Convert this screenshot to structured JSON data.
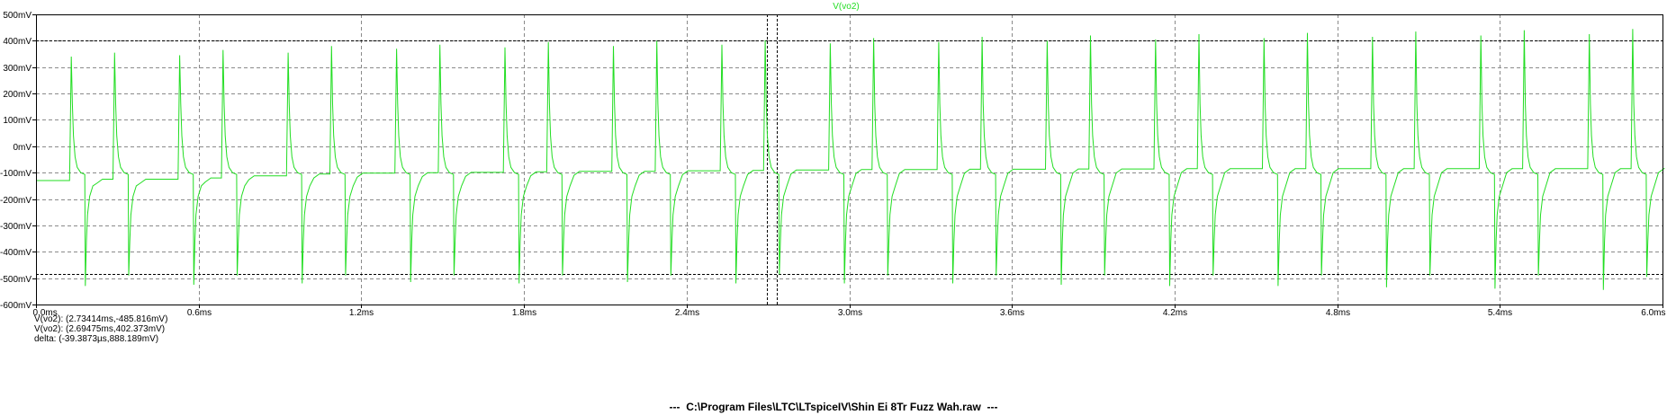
{
  "chart_data": {
    "type": "line",
    "title": "V(vo2)",
    "xlabel": "",
    "ylabel": "",
    "x_unit": "ms",
    "y_unit": "mV",
    "xlim": [
      0.0,
      6.0
    ],
    "ylim": [
      -600,
      500
    ],
    "x_ticks": [
      0.0,
      0.6,
      1.2,
      1.8,
      2.4,
      3.0,
      3.6,
      4.2,
      4.8,
      5.4,
      6.0
    ],
    "x_tick_labels": [
      "0.0ms",
      "0.6ms",
      "1.2ms",
      "1.8ms",
      "2.4ms",
      "3.0ms",
      "3.6ms",
      "4.2ms",
      "4.8ms",
      "5.4ms",
      "6.0ms"
    ],
    "y_ticks": [
      500,
      400,
      300,
      200,
      100,
      0,
      -100,
      -200,
      -300,
      -400,
      -500,
      -600
    ],
    "y_tick_labels": [
      "500mV",
      "400mV",
      "300mV",
      "200mV",
      "100mV",
      "0mV",
      "-100mV",
      "-200mV",
      "-300mV",
      "-400mV",
      "-500mV",
      "-600mV"
    ],
    "grid": true,
    "series": [
      {
        "name": "V(vo2)",
        "color": "#22dd22",
        "start_level": -130,
        "pulses": [
          {
            "t": 0.13,
            "pos": 340,
            "neg": -530,
            "base": -125
          },
          {
            "t": 0.29,
            "pos": 355,
            "neg": -490,
            "base": -125
          },
          {
            "t": 0.53,
            "pos": 345,
            "neg": -525,
            "base": -120
          },
          {
            "t": 0.69,
            "pos": 365,
            "neg": -490,
            "base": -112
          },
          {
            "t": 0.93,
            "pos": 355,
            "neg": -520,
            "base": -105
          },
          {
            "t": 1.09,
            "pos": 380,
            "neg": -490,
            "base": -102
          },
          {
            "t": 1.33,
            "pos": 370,
            "neg": -515,
            "base": -100
          },
          {
            "t": 1.49,
            "pos": 385,
            "neg": -490,
            "base": -99
          },
          {
            "t": 1.73,
            "pos": 375,
            "neg": -520,
            "base": -97
          },
          {
            "t": 1.89,
            "pos": 395,
            "neg": -490,
            "base": -95
          },
          {
            "t": 2.13,
            "pos": 380,
            "neg": -515,
            "base": -95
          },
          {
            "t": 2.29,
            "pos": 400,
            "neg": -490,
            "base": -93
          },
          {
            "t": 2.53,
            "pos": 385,
            "neg": -520,
            "base": -92
          },
          {
            "t": 2.69,
            "pos": 402,
            "neg": -486,
            "base": -90
          },
          {
            "t": 2.93,
            "pos": 390,
            "neg": -520,
            "base": -88
          },
          {
            "t": 3.09,
            "pos": 410,
            "neg": -490,
            "base": -88
          },
          {
            "t": 3.33,
            "pos": 395,
            "neg": -520,
            "base": -87
          },
          {
            "t": 3.49,
            "pos": 415,
            "neg": -490,
            "base": -87
          },
          {
            "t": 3.73,
            "pos": 400,
            "neg": -525,
            "base": -86
          },
          {
            "t": 3.89,
            "pos": 420,
            "neg": -490,
            "base": -86
          },
          {
            "t": 4.13,
            "pos": 405,
            "neg": -530,
            "base": -85
          },
          {
            "t": 4.29,
            "pos": 425,
            "neg": -490,
            "base": -85
          },
          {
            "t": 4.53,
            "pos": 410,
            "neg": -530,
            "base": -85
          },
          {
            "t": 4.69,
            "pos": 430,
            "neg": -490,
            "base": -85
          },
          {
            "t": 4.93,
            "pos": 415,
            "neg": -535,
            "base": -85
          },
          {
            "t": 5.09,
            "pos": 435,
            "neg": -490,
            "base": -85
          },
          {
            "t": 5.33,
            "pos": 420,
            "neg": -540,
            "base": -85
          },
          {
            "t": 5.49,
            "pos": 440,
            "neg": -490,
            "base": -85
          },
          {
            "t": 5.73,
            "pos": 425,
            "neg": -545,
            "base": -85
          },
          {
            "t": 5.89,
            "pos": 445,
            "neg": -495,
            "base": -85
          }
        ]
      }
    ],
    "cursors": {
      "horizontal": [
        402.373,
        -485.816
      ],
      "vertical": [
        2.69475,
        2.73414
      ]
    }
  },
  "cursor_readout": {
    "line1": "V(vo2): (2.73414ms,-485.816mV)",
    "line2": "V(vo2): (2.69475ms,402.373mV)",
    "line3": "delta: (-39.3873µs,888.189mV)"
  },
  "file_title": "---  C:\\Program Files\\LTC\\LTspiceIV\\Shin Ei 8Tr Fuzz Wah.raw  ---"
}
